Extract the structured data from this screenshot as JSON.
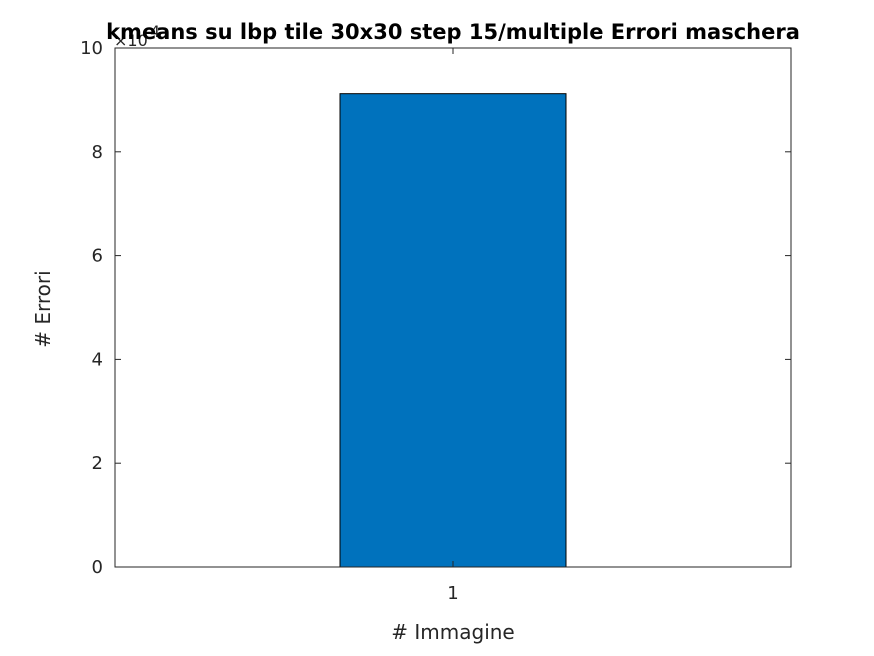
{
  "chart_data": {
    "type": "bar",
    "title": "kmeans su lbp tile 30x30 step 15/multiple Errori maschera",
    "xlabel": "# Immagine",
    "ylabel": "# Errori",
    "categories": [
      "1"
    ],
    "values": [
      91200
    ],
    "ylim": [
      0,
      100000
    ],
    "yticks": [
      0,
      20000,
      40000,
      60000,
      80000,
      100000
    ],
    "ytick_labels": [
      "0",
      "2",
      "4",
      "6",
      "8",
      "10"
    ],
    "y_multiplier": {
      "base": "×10",
      "exponent": "4"
    },
    "bar_color": "#0072BD",
    "grid": false,
    "legend": "none"
  }
}
